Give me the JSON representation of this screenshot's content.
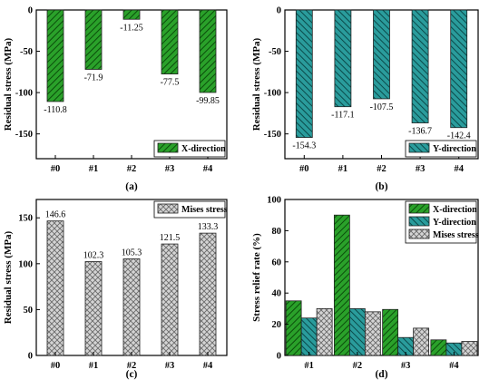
{
  "colors": {
    "x_direction": "#1e8c1e",
    "y_direction": "#1f8c8c",
    "mises": "#b8b8b8",
    "axis": "#000000"
  },
  "panels": [
    {
      "caption": "(a)",
      "chart_data": {
        "type": "bar",
        "categories": [
          "#0",
          "#1",
          "#2",
          "#3",
          "#4"
        ],
        "series": [
          {
            "name": "X-direction",
            "values": [
              -110.8,
              -71.9,
              -11.25,
              -77.5,
              -99.85
            ]
          }
        ],
        "data_labels": [
          "-110.8",
          "-71.9",
          "-11.25",
          "-77.5",
          "-99.85"
        ],
        "ylabel": "Residual stress (MPa)",
        "ylim": [
          -180,
          0
        ],
        "yticks": [
          0,
          -50,
          -100,
          -150
        ],
        "legend_position": "bottom-right",
        "grid": false,
        "style": "hatched"
      }
    },
    {
      "caption": "(b)",
      "chart_data": {
        "type": "bar",
        "categories": [
          "#0",
          "#1",
          "#2",
          "#3",
          "#4"
        ],
        "series": [
          {
            "name": "Y-direction",
            "values": [
              -154.3,
              -117.1,
              -107.5,
              -136.7,
              -142.4
            ]
          }
        ],
        "data_labels": [
          "-154.3",
          "-117.1",
          "-107.5",
          "-136.7",
          "-142.4"
        ],
        "ylabel": "Residual stress (MPa)",
        "ylim": [
          -180,
          0
        ],
        "yticks": [
          0,
          -50,
          -100,
          -150
        ],
        "legend_position": "bottom-right",
        "grid": false,
        "style": "hatched"
      }
    },
    {
      "caption": "(c)",
      "chart_data": {
        "type": "bar",
        "categories": [
          "#0",
          "#1",
          "#2",
          "#3",
          "#4"
        ],
        "series": [
          {
            "name": "Mises stress",
            "values": [
              146.6,
              102.3,
              105.3,
              121.5,
              133.3
            ]
          }
        ],
        "data_labels": [
          "146.6",
          "102.3",
          "105.3",
          "121.5",
          "133.3"
        ],
        "ylabel": "Residual stress (MPa)",
        "ylim": [
          0,
          170
        ],
        "yticks": [
          0,
          50,
          100,
          150
        ],
        "legend_position": "top-right",
        "grid": false,
        "style": "crosshatched"
      }
    },
    {
      "caption": "(d)",
      "chart_data": {
        "type": "bar",
        "categories": [
          "#1",
          "#2",
          "#3",
          "#4"
        ],
        "series": [
          {
            "name": "X-direction",
            "values": [
              35,
              90,
              29.5,
              10
            ]
          },
          {
            "name": "Y-direction",
            "values": [
              24,
              30,
              11.5,
              8
            ]
          },
          {
            "name": "Mises stress",
            "values": [
              30,
              28,
              17.5,
              9
            ]
          }
        ],
        "ylabel": "Stress relief rate (%)",
        "ylim": [
          0,
          100
        ],
        "yticks": [
          0,
          20,
          40,
          60,
          80,
          100
        ],
        "legend_position": "top-right",
        "grid": false,
        "style": "mixed"
      }
    }
  ]
}
